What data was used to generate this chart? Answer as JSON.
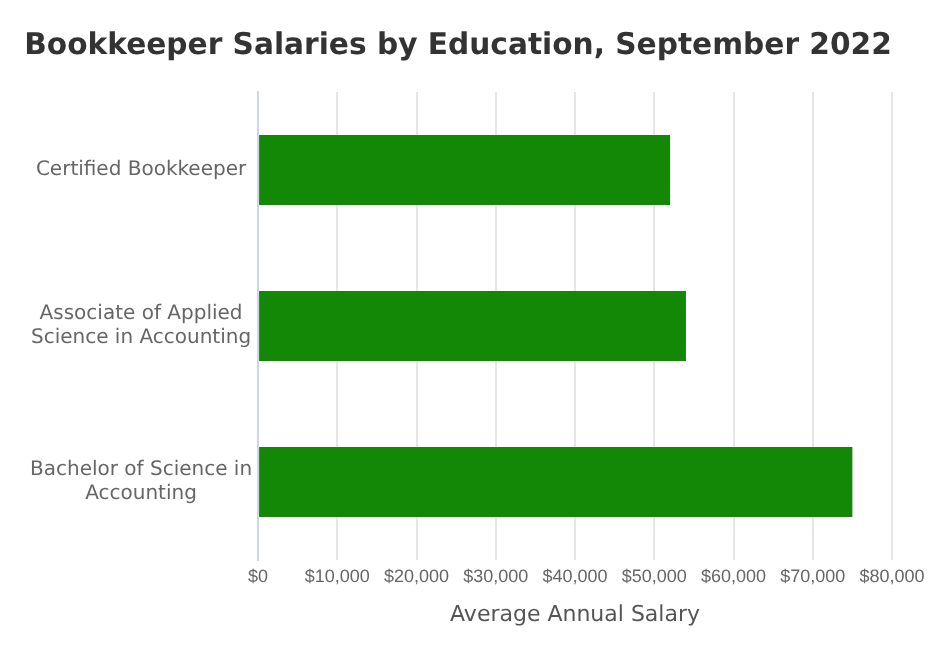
{
  "chart_data": {
    "type": "bar",
    "orientation": "horizontal",
    "title": "Bookkeeper Salaries by Education, September 2022",
    "xlabel": "Average Annual Salary",
    "categories": [
      "Certified Bookkeeper",
      "Associate of Applied Science in Accounting",
      "Bachelor of Science in Accounting"
    ],
    "values": [
      52000,
      54000,
      75000
    ],
    "color": "#138807",
    "xlim": [
      0,
      80000
    ],
    "xticks": [
      {
        "value": 0,
        "label": "$0"
      },
      {
        "value": 10000,
        "label": "$10,000"
      },
      {
        "value": 20000,
        "label": "$20,000"
      },
      {
        "value": 30000,
        "label": "$30,000"
      },
      {
        "value": 40000,
        "label": "$40,000"
      },
      {
        "value": 50000,
        "label": "$50,000"
      },
      {
        "value": 60000,
        "label": "$60,000"
      },
      {
        "value": 70000,
        "label": "$70,000"
      },
      {
        "value": 80000,
        "label": "$80,000"
      }
    ],
    "grid": "x",
    "legend": false
  }
}
